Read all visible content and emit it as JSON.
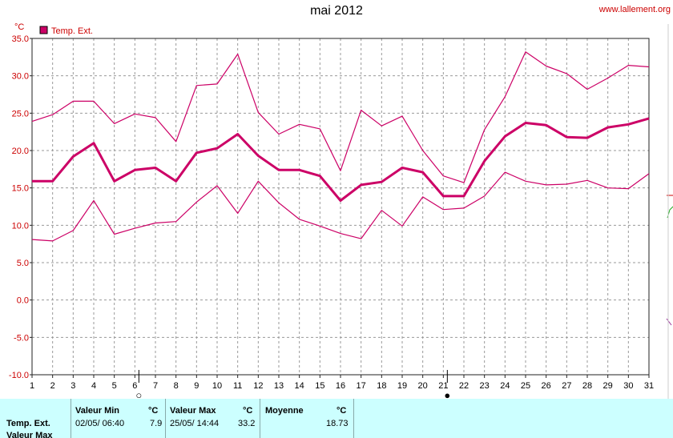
{
  "header": {
    "title": "mai 2012",
    "website": "www.lallement.org"
  },
  "chart_data": {
    "type": "line",
    "title": "mai 2012",
    "ylabel": "°C",
    "ylim": [
      -10,
      35
    ],
    "yticks": [
      "35.0",
      "30.0",
      "25.0",
      "20.0",
      "15.0",
      "10.0",
      "5.0",
      "0.0",
      "-5.0",
      "-10.0"
    ],
    "x": [
      1,
      2,
      3,
      4,
      5,
      6,
      7,
      8,
      9,
      10,
      11,
      12,
      13,
      14,
      15,
      16,
      17,
      18,
      19,
      20,
      21,
      22,
      23,
      24,
      25,
      26,
      27,
      28,
      29,
      30,
      31
    ],
    "legend": [
      {
        "name": "Temp. Ext.",
        "color": "#cc0066"
      }
    ],
    "legend_position": "top-left",
    "grid": true,
    "series": [
      {
        "name": "Temp. Ext.",
        "role": "mean",
        "color": "#cc0066",
        "values": [
          15.9,
          15.9,
          19.2,
          21.0,
          15.9,
          17.4,
          17.7,
          15.9,
          19.7,
          20.3,
          22.2,
          19.3,
          17.4,
          17.4,
          16.6,
          13.3,
          15.4,
          15.8,
          17.7,
          17.1,
          13.9,
          13.9,
          18.6,
          21.9,
          23.7,
          23.4,
          21.8,
          21.7,
          23.1,
          23.5,
          24.3
        ]
      },
      {
        "role": "max",
        "color": "#cc0066",
        "values": [
          23.9,
          24.8,
          26.6,
          26.6,
          23.6,
          24.9,
          24.4,
          21.2,
          28.7,
          28.9,
          32.9,
          25.1,
          22.2,
          23.5,
          22.9,
          17.3,
          25.4,
          23.3,
          24.6,
          20.0,
          16.6,
          15.7,
          22.8,
          27.2,
          33.2,
          31.3,
          30.3,
          28.2,
          29.7,
          31.4,
          31.2
        ]
      },
      {
        "role": "min",
        "color": "#cc0066",
        "values": [
          8.1,
          7.9,
          9.3,
          13.3,
          8.8,
          9.6,
          10.3,
          10.5,
          13.1,
          15.3,
          11.6,
          15.9,
          13.0,
          10.8,
          9.9,
          8.9,
          8.2,
          12.0,
          9.9,
          13.8,
          12.1,
          12.3,
          13.9,
          17.1,
          15.9,
          15.4,
          15.5,
          16.0,
          15.0,
          14.9,
          16.9
        ]
      }
    ],
    "moon_phases": [
      {
        "day": 6,
        "symbol": "○"
      },
      {
        "day": 21,
        "symbol": "●"
      }
    ]
  },
  "stats_table": {
    "headers": {
      "min": "Valeur Min",
      "max": "Valeur Max",
      "mean": "Moyenne",
      "unit": "°C"
    },
    "rows": [
      {
        "label": "Temp. Ext.",
        "min_date": "02/05/  06:40",
        "min_value": "7.9",
        "max_date": "25/05/  14:44",
        "max_value": "33.2",
        "mean": "18.73"
      }
    ],
    "next_row_label": "Valeur Max"
  },
  "colors": {
    "series": "#cc0066",
    "axis_label": "#cc0000",
    "stats_background": "#ccffff"
  }
}
